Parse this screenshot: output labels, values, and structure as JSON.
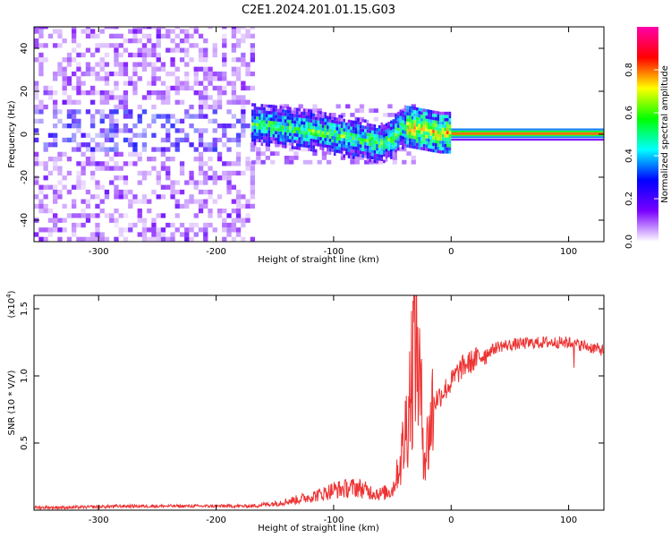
{
  "title": "C2E1.2024.201.01.15.G03",
  "chart_data": [
    {
      "type": "heatmap",
      "xlabel": "Height of straight line (km)",
      "ylabel": "Frequency (Hz)",
      "xlim": [
        -355,
        130
      ],
      "ylim": [
        -50,
        50
      ],
      "x_ticks": [
        -300,
        -200,
        -100,
        0,
        100
      ],
      "x_tick_labels": [
        "-300",
        "-200",
        "-100",
        "0",
        "100"
      ],
      "y_ticks": [
        -40,
        -20,
        0,
        20,
        40
      ],
      "y_tick_labels": [
        "-40",
        "-20",
        "0",
        "20",
        "40"
      ],
      "colorbar": {
        "label": "Normalized spectral amplitude",
        "range": [
          0,
          1
        ],
        "ticks": [
          0,
          0.2,
          0.4,
          0.6,
          0.8
        ],
        "tick_labels": [
          "0.0",
          "0.2",
          "0.4",
          "0.6",
          "0.8"
        ],
        "colormap": [
          "#ffffff",
          "#7a00ff",
          "#0000ff",
          "#00ffff",
          "#00ff00",
          "#ffff00",
          "#ff0000",
          "#ff00aa"
        ]
      },
      "features": {
        "noise_region_x": [
          -355,
          -170
        ],
        "ridge": [
          [
            -170,
            4
          ],
          [
            -150,
            3
          ],
          [
            -120,
            1
          ],
          [
            -100,
            -1
          ],
          [
            -80,
            -3
          ],
          [
            -60,
            -5
          ],
          [
            -50,
            -2
          ],
          [
            -40,
            3
          ],
          [
            -30,
            2
          ],
          [
            -10,
            0
          ],
          [
            0,
            0
          ],
          [
            130,
            0
          ]
        ],
        "strong_line_x": [
          0,
          130
        ]
      }
    },
    {
      "type": "line",
      "xlabel": "Height of straight line (km)",
      "ylabel": "SNR (10 * V/V)",
      "scale_note": "(x10",
      "scale_exp": "4",
      "scale_close": ")",
      "xlim": [
        -355,
        130
      ],
      "ylim": [
        0,
        1.6
      ],
      "x_ticks": [
        -300,
        -200,
        -100,
        0,
        100
      ],
      "x_tick_labels": [
        "-300",
        "-200",
        "-100",
        "0",
        "100"
      ],
      "y_ticks": [
        0.5,
        1.0,
        1.5
      ],
      "y_tick_labels": [
        "0.5",
        "1.0",
        "1.5"
      ],
      "color": "#ee3333",
      "series": [
        {
          "x": [
            -355,
            -320,
            -280,
            -240,
            -200,
            -170,
            -150,
            -130,
            -110,
            -100,
            -90,
            -80,
            -70,
            -60,
            -50,
            -45,
            -40,
            -35,
            -30,
            -28,
            -25,
            -22,
            -20,
            -15,
            -10,
            -5,
            0,
            5,
            10,
            20,
            30,
            40,
            60,
            80,
            100,
            110,
            120,
            130
          ],
          "y": [
            0.02,
            0.02,
            0.03,
            0.03,
            0.03,
            0.03,
            0.05,
            0.08,
            0.12,
            0.15,
            0.16,
            0.17,
            0.14,
            0.12,
            0.15,
            0.3,
            0.5,
            0.9,
            1.4,
            1.1,
            0.7,
            0.4,
            0.5,
            0.8,
            0.85,
            0.9,
            0.95,
            1.02,
            1.07,
            1.12,
            1.17,
            1.22,
            1.24,
            1.25,
            1.25,
            1.23,
            1.21,
            1.19
          ]
        }
      ]
    }
  ]
}
